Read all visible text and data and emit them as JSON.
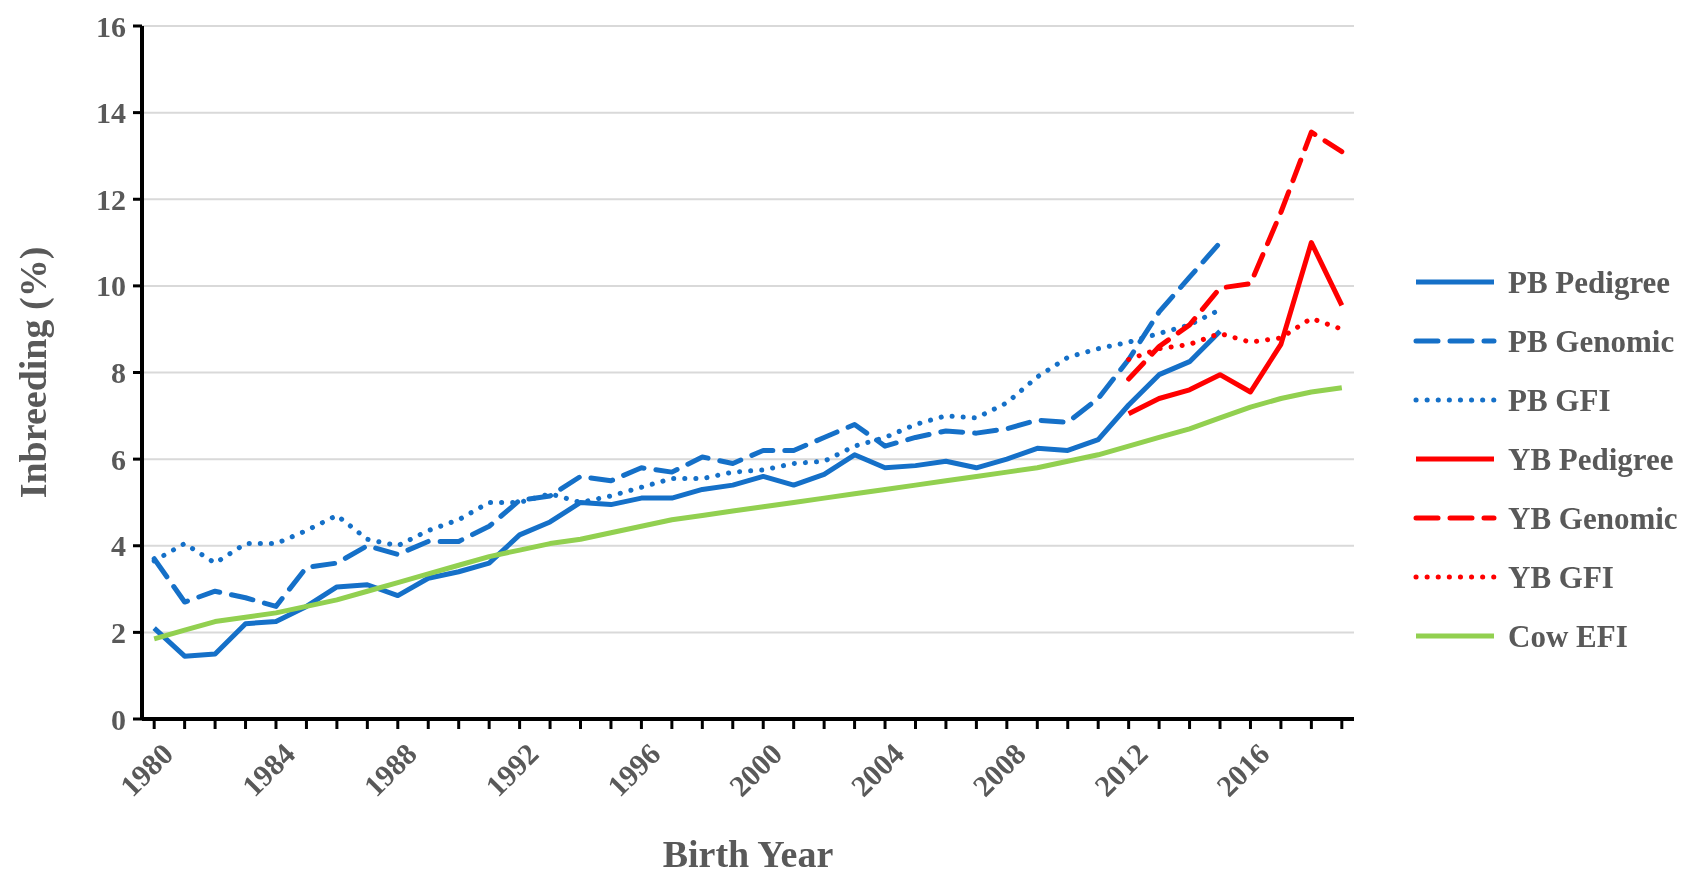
{
  "chart_data": {
    "type": "line",
    "xlabel": "Birth Year",
    "ylabel": "Inbreeding (%)",
    "xlim": [
      1979.6,
      2019.4
    ],
    "ylim": [
      0,
      16
    ],
    "yticks": [
      0,
      2,
      4,
      6,
      8,
      10,
      12,
      14,
      16
    ],
    "xticks": [
      1980,
      {
        "value": 1981,
        "label": null
      },
      {
        "value": 1982,
        "label": null
      },
      {
        "value": 1983,
        "label": null
      },
      1984,
      {
        "value": 1985,
        "label": null
      },
      {
        "value": 1986,
        "label": null
      },
      {
        "value": 1987,
        "label": null
      },
      1988,
      {
        "value": 1989,
        "label": null
      },
      {
        "value": 1990,
        "label": null
      },
      {
        "value": 1991,
        "label": null
      },
      1992,
      {
        "value": 1993,
        "label": null
      },
      {
        "value": 1994,
        "label": null
      },
      {
        "value": 1995,
        "label": null
      },
      1996,
      {
        "value": 1997,
        "label": null
      },
      {
        "value": 1998,
        "label": null
      },
      {
        "value": 1999,
        "label": null
      },
      2000,
      {
        "value": 2001,
        "label": null
      },
      {
        "value": 2002,
        "label": null
      },
      {
        "value": 2003,
        "label": null
      },
      2004,
      {
        "value": 2005,
        "label": null
      },
      {
        "value": 2006,
        "label": null
      },
      {
        "value": 2007,
        "label": null
      },
      2008,
      {
        "value": 2009,
        "label": null
      },
      {
        "value": 2010,
        "label": null
      },
      {
        "value": 2011,
        "label": null
      },
      2012,
      {
        "value": 2013,
        "label": null
      },
      {
        "value": 2014,
        "label": null
      },
      {
        "value": 2015,
        "label": null
      },
      2016,
      {
        "value": 2017,
        "label": null
      },
      {
        "value": 2018,
        "label": null
      },
      {
        "value": 2019,
        "label": null
      }
    ],
    "grid": "y",
    "legend": "right",
    "marker": "none",
    "series": [
      {
        "name": "PB Pedigree",
        "color": "#1570c8",
        "line_style": "solid",
        "x": [
          1980,
          1981,
          1982,
          1983,
          1984,
          1985,
          1986,
          1987,
          1988,
          1989,
          1990,
          1991,
          1992,
          1993,
          1994,
          1995,
          1996,
          1997,
          1998,
          1999,
          2000,
          2001,
          2002,
          2003,
          2004,
          2005,
          2006,
          2007,
          2008,
          2009,
          2010,
          2011,
          2012,
          2013,
          2014,
          2015
        ],
        "values": [
          2.1,
          1.45,
          1.5,
          2.2,
          2.25,
          2.6,
          3.05,
          3.1,
          2.85,
          3.25,
          3.4,
          3.6,
          4.25,
          4.55,
          5.0,
          4.95,
          5.1,
          5.1,
          5.3,
          5.4,
          5.6,
          5.4,
          5.65,
          6.1,
          5.8,
          5.85,
          5.95,
          5.8,
          6.0,
          6.25,
          6.2,
          6.45,
          7.25,
          7.95,
          8.25,
          8.95
        ]
      },
      {
        "name": "PB Genomic",
        "color": "#1570c8",
        "line_style": "dashed",
        "x": [
          1980,
          1981,
          1982,
          1983,
          1984,
          1985,
          1986,
          1987,
          1988,
          1989,
          1990,
          1991,
          1992,
          1993,
          1994,
          1995,
          1996,
          1997,
          1998,
          1999,
          2000,
          2001,
          2002,
          2003,
          2004,
          2005,
          2006,
          2007,
          2008,
          2009,
          2010,
          2011,
          2012,
          2013,
          2014,
          2015
        ],
        "values": [
          3.7,
          2.7,
          2.95,
          2.8,
          2.6,
          3.5,
          3.6,
          4.0,
          3.8,
          4.1,
          4.1,
          4.45,
          5.05,
          5.15,
          5.6,
          5.5,
          5.8,
          5.7,
          6.05,
          5.9,
          6.2,
          6.2,
          6.5,
          6.8,
          6.3,
          6.5,
          6.65,
          6.6,
          6.7,
          6.9,
          6.85,
          7.4,
          8.3,
          9.4,
          10.2,
          11.0
        ]
      },
      {
        "name": "PB GFI",
        "color": "#1570c8",
        "line_style": "dotted",
        "x": [
          1980,
          1981,
          1982,
          1983,
          1984,
          1985,
          1986,
          1987,
          1988,
          1989,
          1990,
          1991,
          1992,
          1993,
          1994,
          1995,
          1996,
          1997,
          1998,
          1999,
          2000,
          2001,
          2002,
          2003,
          2004,
          2005,
          2006,
          2007,
          2008,
          2009,
          2010,
          2011,
          2012,
          2013,
          2014,
          2015
        ],
        "values": [
          3.65,
          4.05,
          3.6,
          4.05,
          4.05,
          4.35,
          4.7,
          4.15,
          4.0,
          4.35,
          4.6,
          5.0,
          5.0,
          5.2,
          5.0,
          5.15,
          5.35,
          5.55,
          5.55,
          5.7,
          5.75,
          5.9,
          5.95,
          6.3,
          6.5,
          6.8,
          7.0,
          6.95,
          7.3,
          7.9,
          8.35,
          8.55,
          8.7,
          8.9,
          9.1,
          9.45
        ]
      },
      {
        "name": "YB Pedigree",
        "color": "#ff0000",
        "line_style": "solid",
        "x": [
          2012,
          2013,
          2014,
          2015,
          2016,
          2017,
          2018,
          2019
        ],
        "values": [
          7.05,
          7.4,
          7.6,
          7.95,
          7.55,
          8.65,
          11.0,
          9.55
        ]
      },
      {
        "name": "YB Genomic",
        "color": "#ff0000",
        "line_style": "dashed",
        "x": [
          2012,
          2013,
          2014,
          2015,
          2016,
          2017,
          2018,
          2019
        ],
        "values": [
          7.85,
          8.6,
          9.1,
          9.95,
          10.05,
          11.7,
          13.55,
          13.1
        ]
      },
      {
        "name": "YB GFI",
        "color": "#ff0000",
        "line_style": "dotted",
        "x": [
          2012,
          2013,
          2014,
          2015,
          2016,
          2017,
          2018,
          2019
        ],
        "values": [
          8.3,
          8.55,
          8.65,
          8.9,
          8.7,
          8.8,
          9.25,
          9.0
        ]
      },
      {
        "name": "Cow EFI",
        "color": "#92d050",
        "line_style": "solid",
        "x": [
          1980,
          1981,
          1982,
          1983,
          1984,
          1985,
          1986,
          1987,
          1988,
          1989,
          1990,
          1991,
          1992,
          1993,
          1994,
          1995,
          1996,
          1997,
          1998,
          1999,
          2000,
          2001,
          2002,
          2003,
          2004,
          2005,
          2006,
          2007,
          2008,
          2009,
          2010,
          2011,
          2012,
          2013,
          2014,
          2015,
          2016,
          2017,
          2018,
          2019
        ],
        "values": [
          1.85,
          2.05,
          2.25,
          2.35,
          2.45,
          2.6,
          2.75,
          2.95,
          3.15,
          3.35,
          3.55,
          3.75,
          3.9,
          4.05,
          4.15,
          4.3,
          4.45,
          4.6,
          4.7,
          4.8,
          4.9,
          5.0,
          5.1,
          5.2,
          5.3,
          5.4,
          5.5,
          5.6,
          5.7,
          5.8,
          5.95,
          6.1,
          6.3,
          6.5,
          6.7,
          6.95,
          7.2,
          7.4,
          7.55,
          7.65
        ]
      }
    ]
  }
}
